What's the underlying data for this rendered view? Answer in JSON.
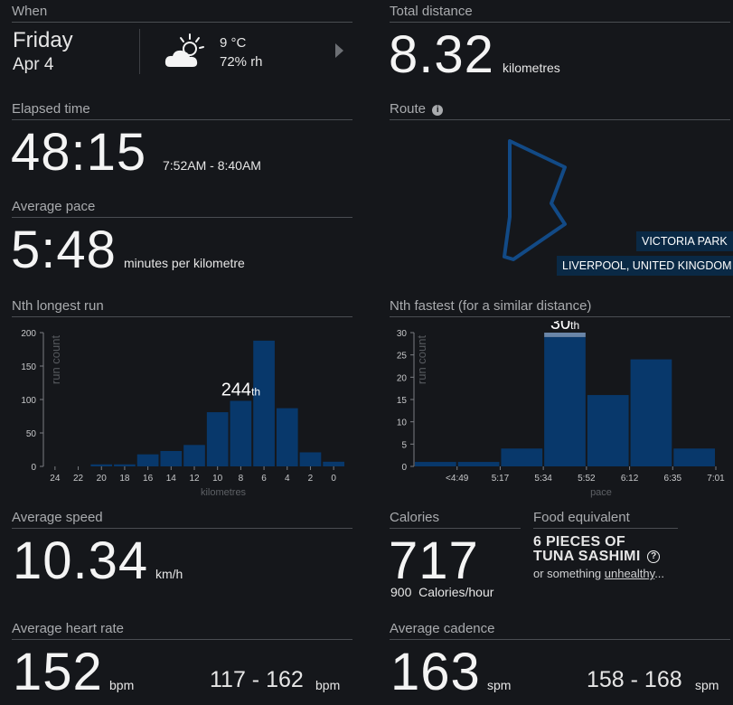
{
  "when": {
    "label": "When",
    "day": "Friday",
    "date": "Apr 4",
    "temp": "9 °C",
    "humidity": "72% rh",
    "weather_icon": "partly-cloudy-icon"
  },
  "distance": {
    "label": "Total distance",
    "value": "8.32",
    "unit": "kilometres"
  },
  "elapsed": {
    "label": "Elapsed time",
    "value": "48:15",
    "range": "7:52AM - 8:40AM"
  },
  "route": {
    "label": "Route",
    "place": "VICTORIA PARK",
    "region": "LIVERPOOL, UNITED KINGDOM"
  },
  "pace": {
    "label": "Average pace",
    "value": "5:48",
    "unit": "minutes per kilometre"
  },
  "longest": {
    "label": "Nth longest run",
    "rank": "244",
    "suffix": "th"
  },
  "fastest": {
    "label": "Nth fastest (for a similar distance)",
    "rank": "30",
    "suffix": "th"
  },
  "speed": {
    "label": "Average speed",
    "value": "10.34",
    "unit": "km/h"
  },
  "calories": {
    "label": "Calories",
    "value": "717",
    "rate_value": "900",
    "rate_unit": "Calories/hour"
  },
  "food": {
    "label": "Food equivalent",
    "line1": "6 PIECES OF",
    "line2": "TUNA SASHIMI",
    "alt_prefix": "or something ",
    "alt_link": "unhealthy",
    "alt_suffix": "..."
  },
  "heart": {
    "label": "Average heart rate",
    "value": "152",
    "unit": "bpm",
    "range": "117 - 162",
    "range_unit": "bpm"
  },
  "cadence": {
    "label": "Average cadence",
    "value": "163",
    "unit": "spm",
    "range": "158 - 168",
    "range_unit": "spm"
  },
  "colors": {
    "bar": "#08386b",
    "highlight": "#6a86a8",
    "route": "#124a86",
    "background": "#15171b"
  },
  "chart_data": [
    {
      "type": "bar",
      "title": "Nth longest run",
      "xlabel": "kilometres",
      "ylabel": "run count",
      "ylim": [
        0,
        200
      ],
      "yticks": [
        "0",
        "50",
        "100",
        "150",
        "200"
      ],
      "xticks": [
        "24",
        "22",
        "20",
        "18",
        "16",
        "14",
        "12",
        "10",
        "8",
        "6",
        "4",
        "2",
        "0"
      ],
      "values": [
        0,
        0,
        3,
        3,
        18,
        23,
        32,
        81,
        98,
        188,
        87,
        21,
        7
      ],
      "highlight_index": 8,
      "highlight_label": "244",
      "highlight_suffix": "th"
    },
    {
      "type": "bar",
      "title": "Nth fastest (for a similar distance)",
      "xlabel": "pace",
      "ylabel": "run count",
      "ylim": [
        0,
        30
      ],
      "yticks": [
        "0",
        "5",
        "10",
        "15",
        "20",
        "25",
        "30"
      ],
      "xticks": [
        "<4:49",
        "5:17",
        "5:34",
        "5:52",
        "6:12",
        "6:35",
        "7:01"
      ],
      "values": [
        1,
        1,
        4,
        29,
        16,
        24,
        4
      ],
      "highlight_index": 3,
      "highlight_value": 1,
      "highlight_label": "30",
      "highlight_suffix": "th"
    }
  ]
}
